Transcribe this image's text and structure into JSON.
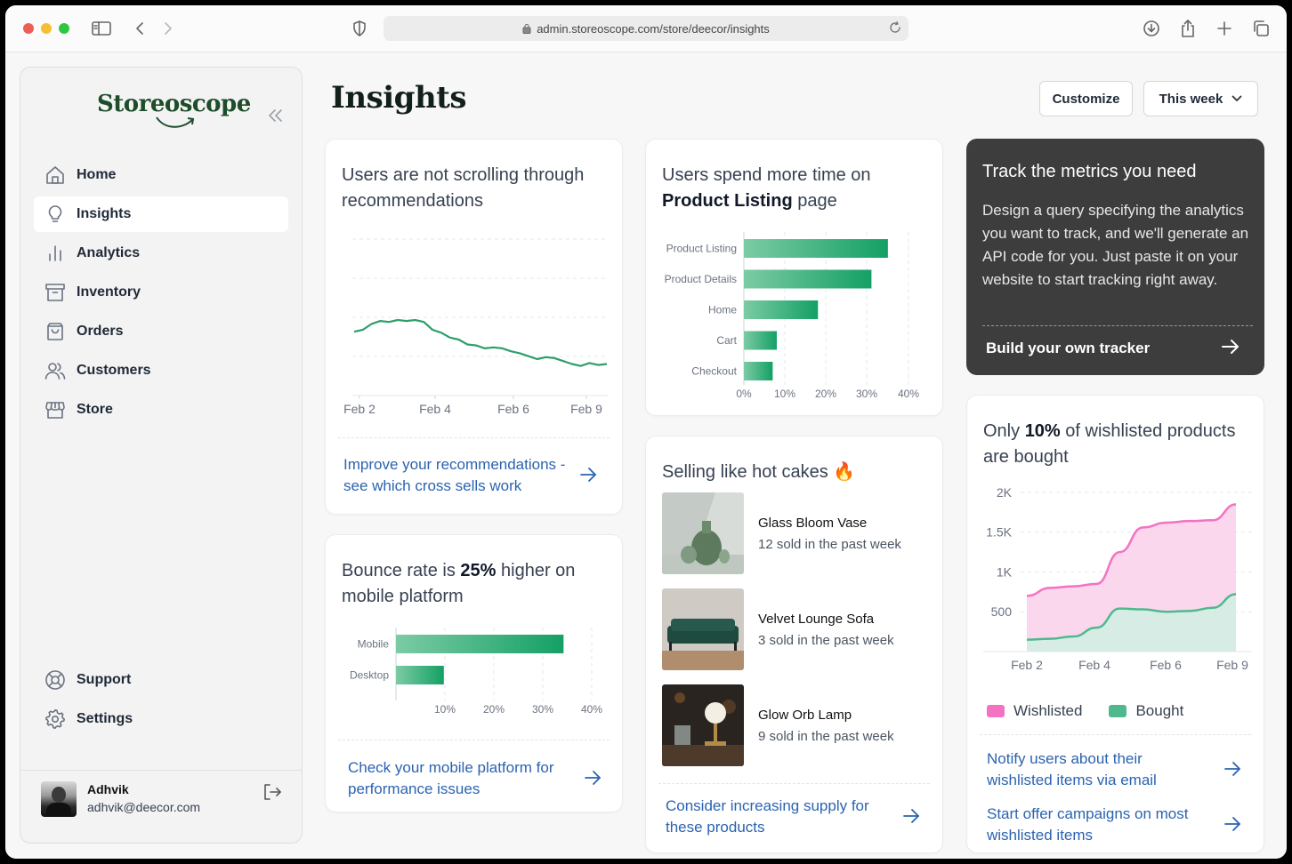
{
  "browser": {
    "url": "admin.storeoscope.com/store/deecor/insights",
    "traffic_colors": [
      "#ee5e57",
      "#f6bf31",
      "#2ec840"
    ]
  },
  "sidebar": {
    "logo": "Storeoscope",
    "brand_color": "#1e4d2b",
    "items": [
      {
        "label": "Home",
        "icon": "home-icon"
      },
      {
        "label": "Insights",
        "icon": "lightbulb-icon",
        "active": true
      },
      {
        "label": "Analytics",
        "icon": "bar-chart-icon"
      },
      {
        "label": "Inventory",
        "icon": "archive-icon"
      },
      {
        "label": "Orders",
        "icon": "shopping-bag-icon"
      },
      {
        "label": "Customers",
        "icon": "users-icon"
      },
      {
        "label": "Store",
        "icon": "storefront-icon"
      }
    ],
    "bottom_items": [
      {
        "label": "Support",
        "icon": "lifebuoy-icon"
      },
      {
        "label": "Settings",
        "icon": "gear-icon"
      }
    ],
    "user": {
      "name": "Adhvik",
      "email": "adhvik@deecor.com"
    }
  },
  "header": {
    "title": "Insights",
    "customize_label": "Customize",
    "period_label": "This week"
  },
  "cards": {
    "scroll": {
      "title": "Users are not scrolling through recommendations",
      "link": "Improve your recommendations - see which cross sells work"
    },
    "listing": {
      "title_pre": "Users spend more time on",
      "title_bold": "Product Listing",
      "title_post": "page"
    },
    "tracker": {
      "title": "Track the metrics you need",
      "body": "Design a query specifying the analytics you want to track, and we'll generate an API code for you. Just paste it on your website to start tracking right away.",
      "cta": "Build your own tracker"
    },
    "bounce": {
      "title_pre": "Bounce rate is",
      "title_bold": "25%",
      "title_post": "higher on mobile platform",
      "link": "Check your mobile platform for performance issues"
    },
    "hotcakes": {
      "title": "Selling like hot cakes 🔥",
      "products": [
        {
          "name": "Glass Bloom Vase",
          "sold": "12 sold in the past week"
        },
        {
          "name": "Velvet Lounge Sofa",
          "sold": "3 sold in the past week"
        },
        {
          "name": "Glow Orb Lamp",
          "sold": "9 sold in the past week"
        }
      ],
      "link": "Consider increasing supply for these products"
    },
    "wishlist": {
      "title_pre": "Only",
      "title_bold": "10%",
      "title_post": "of wishlisted products are bought",
      "legend": [
        "Wishlisted",
        "Bought"
      ],
      "links": [
        "Notify users about their wishlisted items via email",
        "Start offer campaigns on most wishlisted items"
      ]
    }
  },
  "chart_data": [
    {
      "type": "line",
      "x_tick_labels": [
        "Feb 2",
        "Feb 4",
        "Feb 6",
        "Feb 9"
      ],
      "series": [
        {
          "color": "#2e9e6b",
          "values": [
            0.38,
            0.4,
            0.46,
            0.49,
            0.48,
            0.5,
            0.49,
            0.5,
            0.48,
            0.4,
            0.37,
            0.32,
            0.3,
            0.25,
            0.24,
            0.21,
            0.22,
            0.21,
            0.18,
            0.16,
            0.13,
            0.1,
            0.12,
            0.11,
            0.08,
            0.05,
            0.03,
            0.06,
            0.04,
            0.05
          ]
        }
      ],
      "grid": true
    },
    {
      "type": "bar",
      "orientation": "horizontal",
      "categories": [
        "Product Listing",
        "Product Details",
        "Home",
        "Cart",
        "Checkout"
      ],
      "values": [
        35,
        31,
        18,
        8,
        7
      ],
      "xlim": [
        0,
        40
      ],
      "x_tick_labels": [
        "0%",
        "10%",
        "20%",
        "30%",
        "40%"
      ],
      "color": "#16a36a"
    },
    {
      "type": "bar",
      "orientation": "horizontal",
      "categories": [
        "Mobile",
        "Desktop"
      ],
      "values": [
        35,
        10
      ],
      "xlim": [
        0,
        42
      ],
      "x_tick_labels": [
        "10%",
        "20%",
        "30%",
        "40%"
      ],
      "color": "#16a36a"
    },
    {
      "type": "area",
      "x_tick_labels": [
        "Feb 2",
        "Feb 4",
        "Feb 6",
        "Feb 9"
      ],
      "y_tick_labels": [
        "2K",
        "1.5K",
        "1K",
        "500"
      ],
      "ylim": [
        0,
        2100
      ],
      "series": [
        {
          "name": "Wishlisted",
          "color": "#f472c2",
          "fill": "#fbd3ec",
          "values": [
            700,
            800,
            820,
            850,
            1250,
            1560,
            1620,
            1640,
            1650,
            1850
          ]
        },
        {
          "name": "Bought",
          "color": "#4fb98d",
          "fill": "#d3eee2",
          "values": [
            150,
            160,
            190,
            300,
            540,
            530,
            500,
            510,
            550,
            720
          ]
        }
      ]
    }
  ]
}
